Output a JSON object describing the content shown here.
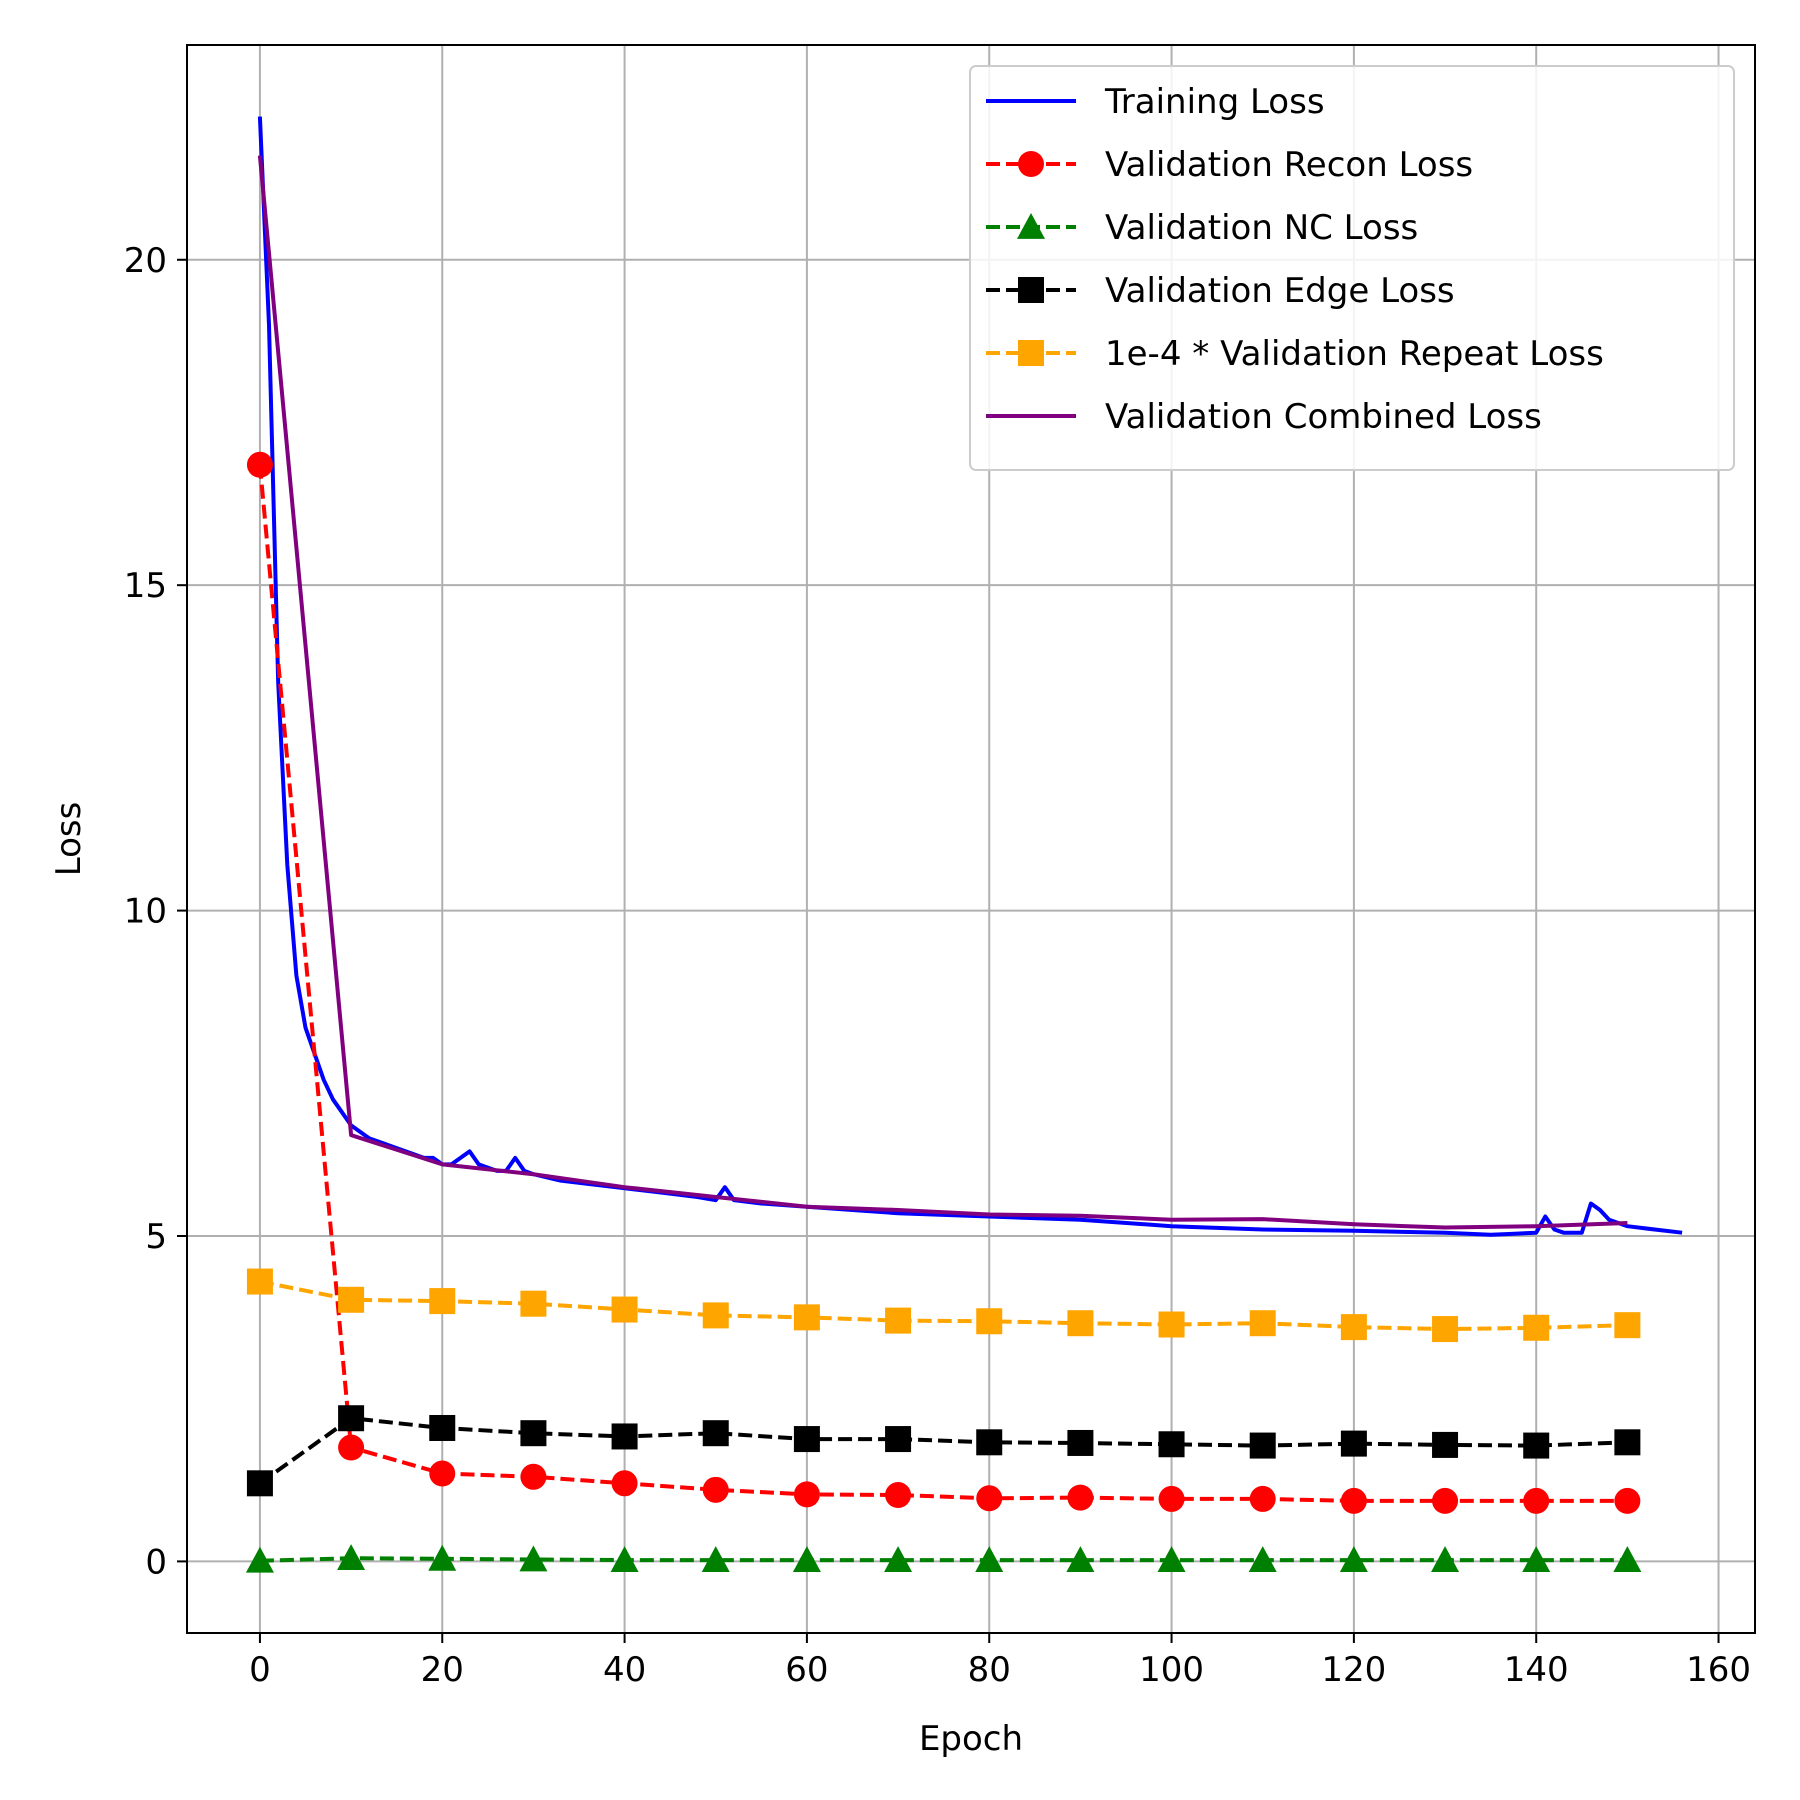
{
  "chart_data": {
    "type": "line",
    "title": "",
    "xlabel": "Epoch",
    "ylabel": "Loss",
    "xlim": [
      -8,
      164
    ],
    "ylim": [
      -1.1,
      23.3
    ],
    "xticks": [
      0,
      20,
      40,
      60,
      80,
      100,
      120,
      140,
      160
    ],
    "yticks": [
      0,
      5,
      10,
      15,
      20
    ],
    "grid": true,
    "legend_position": "top-right",
    "series": [
      {
        "name": "Training Loss",
        "color": "#0000ff",
        "style": "solid",
        "marker": "none",
        "x": [
          0,
          1,
          2,
          3,
          4,
          5,
          6,
          7,
          8,
          9,
          10,
          12,
          14,
          16,
          18,
          19,
          20,
          21,
          22,
          23,
          24,
          26,
          27,
          28,
          29,
          30,
          33,
          36,
          39,
          42,
          45,
          48,
          50,
          51,
          52,
          55,
          60,
          65,
          70,
          80,
          90,
          100,
          110,
          120,
          130,
          135,
          137,
          140,
          141,
          142,
          143,
          145,
          146,
          147,
          148,
          149,
          150,
          153,
          156
        ],
        "y": [
          22.2,
          19.0,
          13.5,
          10.7,
          9.0,
          8.2,
          7.8,
          7.4,
          7.1,
          6.9,
          6.7,
          6.5,
          6.4,
          6.3,
          6.2,
          6.2,
          6.1,
          6.1,
          6.2,
          6.3,
          6.1,
          6.0,
          6.0,
          6.2,
          6.0,
          5.95,
          5.85,
          5.8,
          5.75,
          5.7,
          5.65,
          5.6,
          5.55,
          5.75,
          5.55,
          5.5,
          5.45,
          5.4,
          5.35,
          5.3,
          5.25,
          5.15,
          5.1,
          5.08,
          5.05,
          5.02,
          5.03,
          5.05,
          5.3,
          5.1,
          5.05,
          5.05,
          5.5,
          5.4,
          5.25,
          5.2,
          5.15,
          5.1,
          5.05
        ]
      },
      {
        "name": "Validation Recon Loss",
        "color": "#ff0000",
        "style": "dashed",
        "marker": "circle",
        "x": [
          0,
          10,
          20,
          30,
          40,
          50,
          60,
          70,
          80,
          90,
          100,
          110,
          120,
          130,
          140,
          150
        ],
        "y": [
          16.85,
          1.75,
          1.35,
          1.3,
          1.2,
          1.1,
          1.03,
          1.02,
          0.97,
          0.98,
          0.96,
          0.96,
          0.93,
          0.93,
          0.93,
          0.93
        ]
      },
      {
        "name": "Validation NC Loss",
        "color": "#008000",
        "style": "dashed",
        "marker": "triangle",
        "x": [
          0,
          10,
          20,
          30,
          40,
          50,
          60,
          70,
          80,
          90,
          100,
          110,
          120,
          130,
          140,
          150
        ],
        "y": [
          0.01,
          0.05,
          0.04,
          0.03,
          0.02,
          0.02,
          0.02,
          0.02,
          0.02,
          0.02,
          0.02,
          0.02,
          0.02,
          0.02,
          0.02,
          0.02
        ]
      },
      {
        "name": "Validation Edge Loss",
        "color": "#000000",
        "style": "dashed",
        "marker": "square",
        "x": [
          0,
          10,
          20,
          30,
          40,
          50,
          60,
          70,
          80,
          90,
          100,
          110,
          120,
          130,
          140,
          150
        ],
        "y": [
          1.2,
          2.2,
          2.05,
          1.97,
          1.92,
          1.97,
          1.88,
          1.88,
          1.83,
          1.82,
          1.8,
          1.78,
          1.81,
          1.79,
          1.78,
          1.83
        ]
      },
      {
        "name": "1e-4 * Validation Repeat Loss",
        "color": "#ffa500",
        "style": "dashed",
        "marker": "square",
        "x": [
          0,
          10,
          20,
          30,
          40,
          50,
          60,
          70,
          80,
          90,
          100,
          110,
          120,
          130,
          140,
          150
        ],
        "y": [
          4.3,
          4.02,
          4.0,
          3.96,
          3.87,
          3.78,
          3.75,
          3.7,
          3.69,
          3.66,
          3.64,
          3.66,
          3.6,
          3.57,
          3.59,
          3.63
        ]
      },
      {
        "name": "Validation Combined Loss",
        "color": "#800080",
        "style": "solid",
        "marker": "none",
        "x": [
          0,
          10,
          20,
          30,
          40,
          50,
          60,
          70,
          80,
          90,
          100,
          110,
          120,
          130,
          140,
          150
        ],
        "y": [
          21.6,
          6.55,
          6.1,
          5.95,
          5.75,
          5.6,
          5.45,
          5.4,
          5.33,
          5.31,
          5.25,
          5.26,
          5.18,
          5.13,
          5.15,
          5.2
        ]
      }
    ]
  }
}
